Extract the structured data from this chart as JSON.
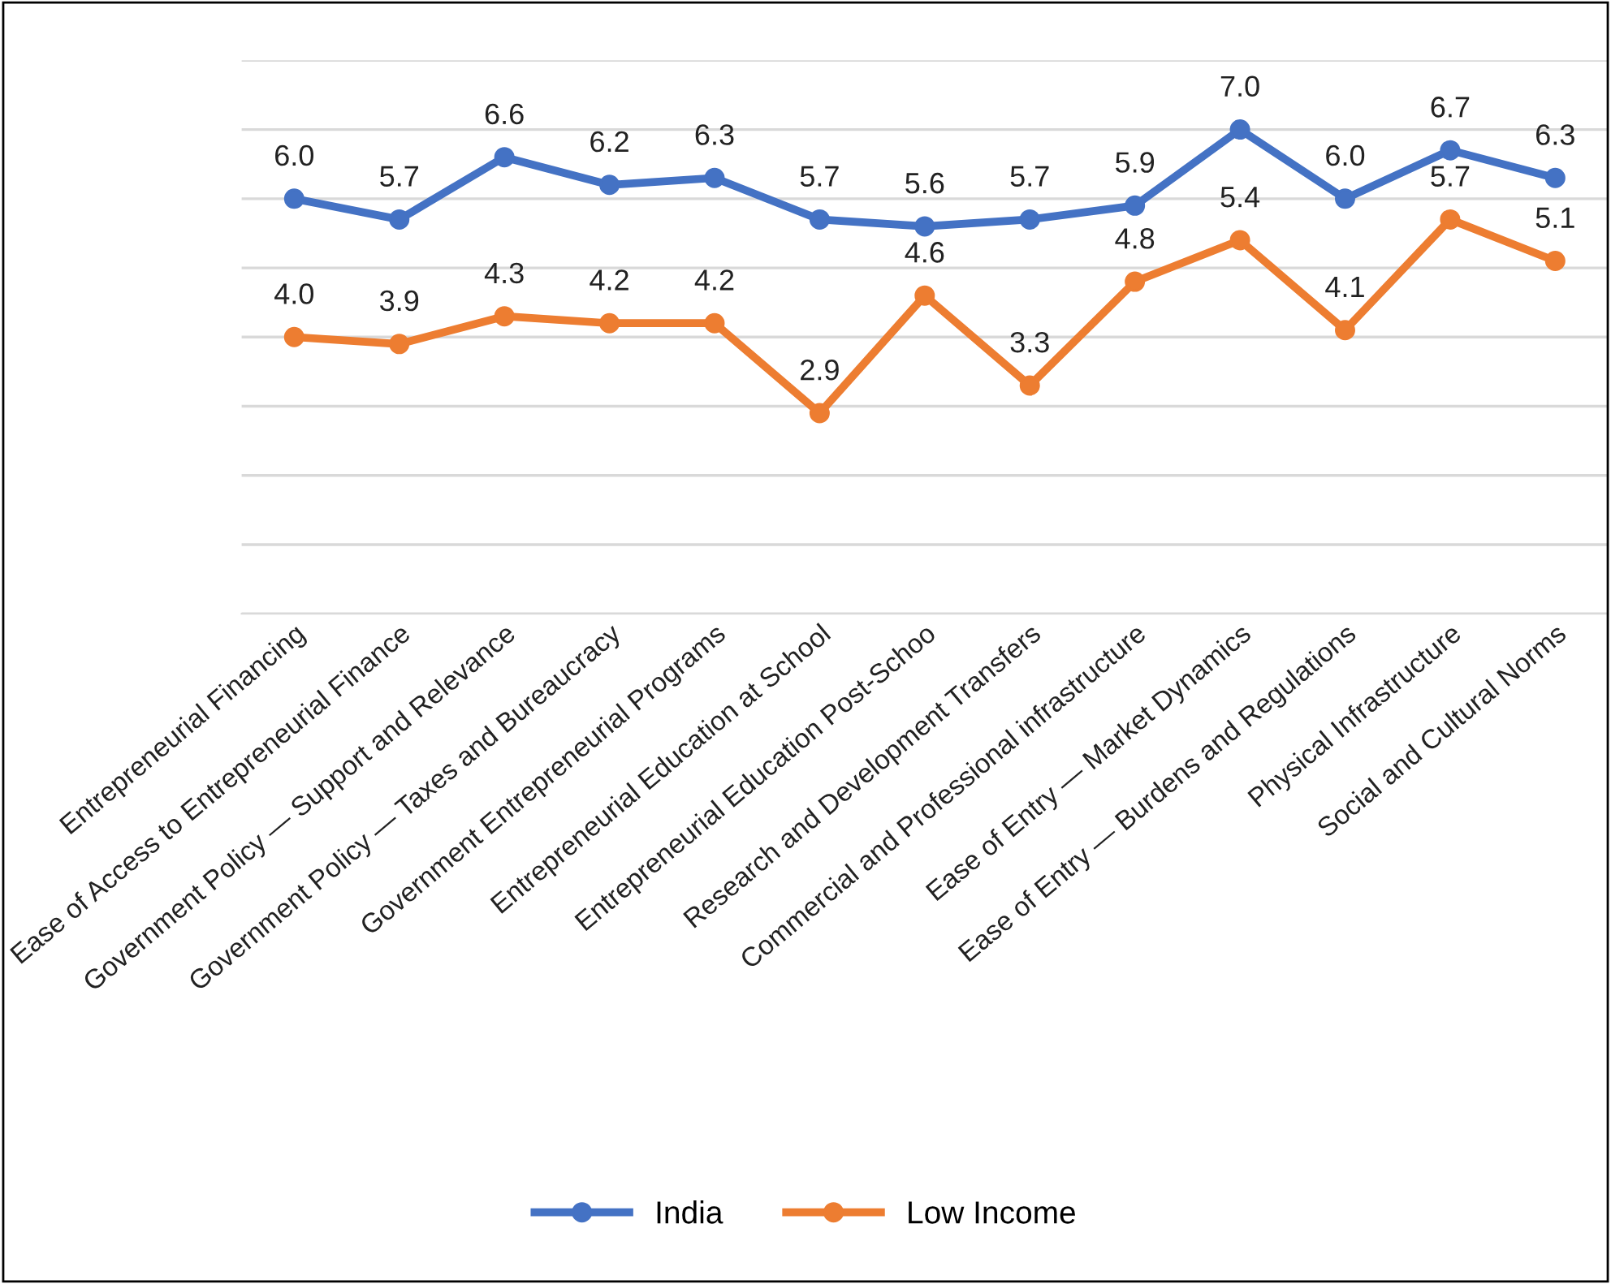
{
  "chart_data": {
    "type": "line",
    "categories": [
      "Entrepreneurial Financing",
      "Ease of Access to Entrepreneurial Finance",
      "Government Policy — Support and Relevance",
      "Government Policy — Taxes and Bureaucracy",
      "Government Entrepreneurial Programs",
      "Entrepreneurial Education at School",
      "Entrepreneurial Education Post-Schoo",
      "Research and Development Transfers",
      "Commercial and Professional infrastructure",
      "Ease of Entry — Market Dynamics",
      "Ease of Entry — Burdens and Regulations",
      "Physical Infrastructure",
      "Social and Cultural Norms"
    ],
    "series": [
      {
        "name": "India",
        "color": "#4472c4",
        "values": [
          6.0,
          5.7,
          6.6,
          6.2,
          6.3,
          5.7,
          5.6,
          5.7,
          5.9,
          7.0,
          6.0,
          6.7,
          6.3
        ],
        "value_labels": [
          "6.0",
          "5.7",
          "6.6",
          "6.2",
          "6.3",
          "5.7",
          "5.6",
          "5.7",
          "5.9",
          "7.0",
          "6.0",
          "6.7",
          "6.3"
        ]
      },
      {
        "name": "Low Income",
        "color": "#ed7d31",
        "values": [
          4.0,
          3.9,
          4.3,
          4.2,
          4.2,
          2.9,
          4.6,
          3.3,
          4.8,
          5.4,
          4.1,
          5.7,
          5.1
        ],
        "value_labels": [
          "4.0",
          "3.9",
          "4.3",
          "4.2",
          "4.2",
          "2.9",
          "4.6",
          "3.3",
          "4.8",
          "5.4",
          "4.1",
          "5.7",
          "5.1"
        ]
      }
    ],
    "ylim": [
      0,
      8
    ],
    "yticks": [
      {
        "value": 0,
        "label": null
      },
      {
        "value": 1,
        "label": null
      },
      {
        "value": 2,
        "label": null
      },
      {
        "value": 3,
        "label": null
      },
      {
        "value": 4,
        "label": null
      },
      {
        "value": 5,
        "label": null
      },
      {
        "value": 6,
        "label": null
      },
      {
        "value": 7,
        "label": null
      },
      {
        "value": 8,
        "label": null
      }
    ],
    "tick_labels": "x",
    "grid": "y",
    "legend": "bottom",
    "marker": "circle",
    "line_style": "solid"
  }
}
